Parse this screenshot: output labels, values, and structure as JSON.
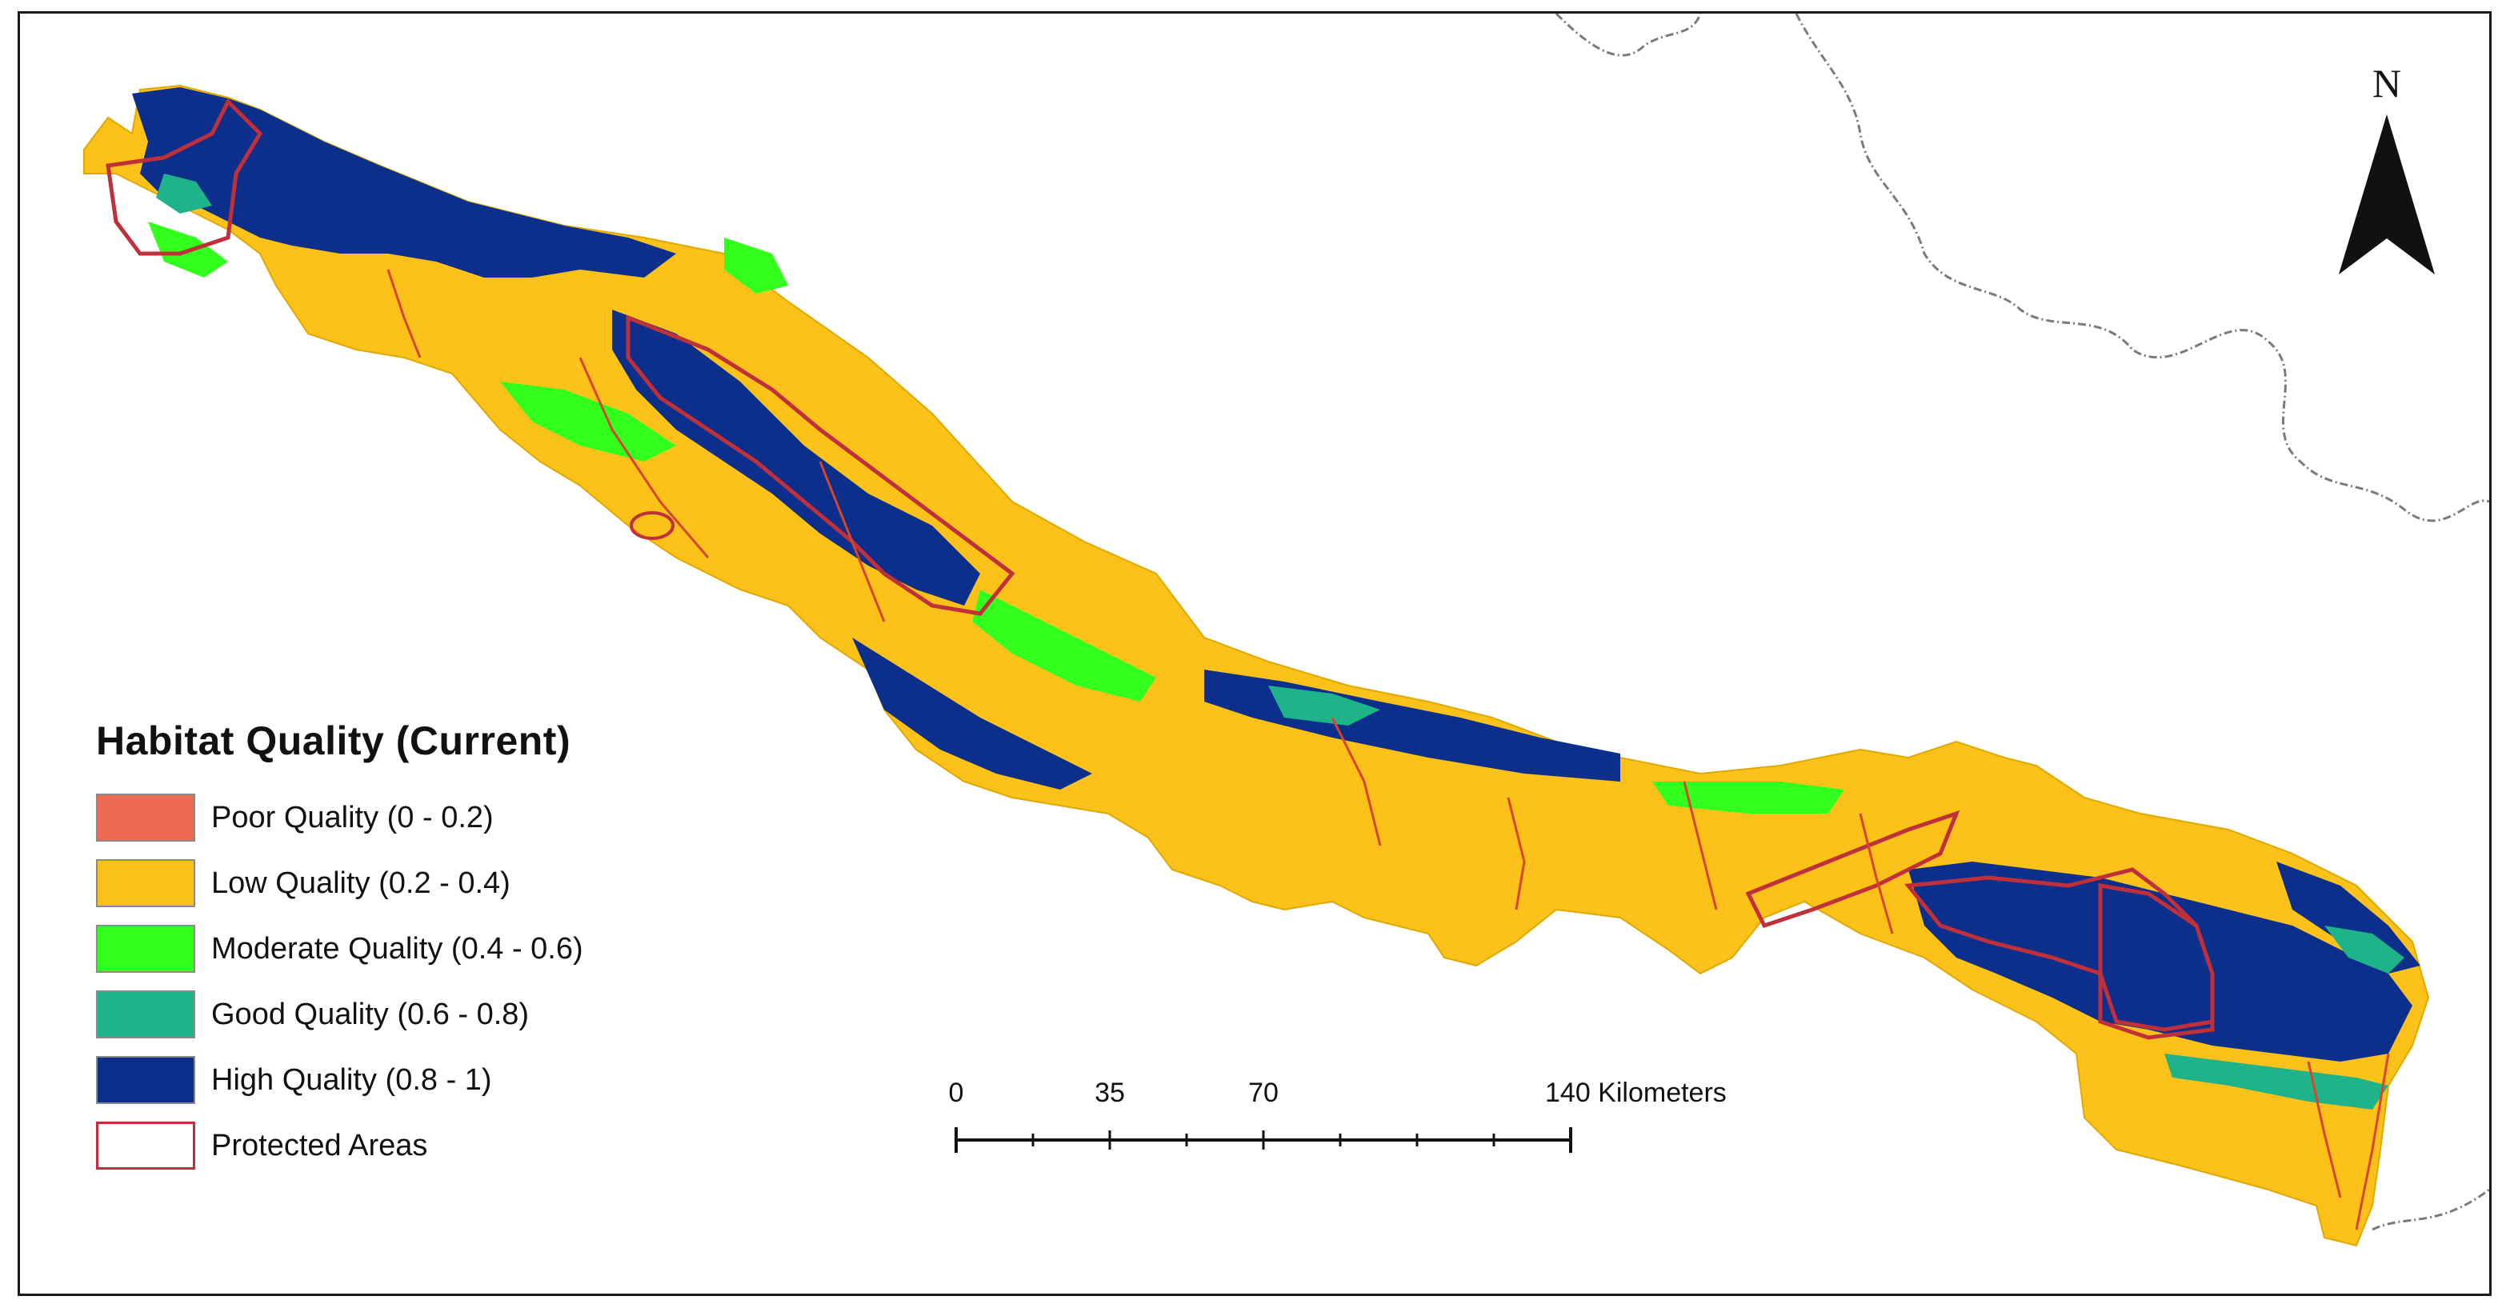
{
  "legend": {
    "title": "Habitat Quality (Current)",
    "items": [
      {
        "label": "Poor Quality (0 - 0.2)",
        "color": "#ee6a50"
      },
      {
        "label": "Low Quality (0.2 - 0.4)",
        "color": "#fcc21a"
      },
      {
        "label": "Moderate Quality (0.4 - 0.6)",
        "color": "#33ff1f"
      },
      {
        "label": "Good Quality (0.6 - 0.8)",
        "color": "#1fb38a"
      },
      {
        "label": "High Quality (0.8 - 1)",
        "color": "#0c2f8c"
      },
      {
        "label": "Protected Areas",
        "color": "#ffffff",
        "outline": "#c0303a"
      }
    ]
  },
  "north_arrow": {
    "label": "N"
  },
  "scale_bar": {
    "labels": [
      "0",
      "35",
      "70",
      "140 Kilometers"
    ],
    "values_km": [
      0,
      35,
      70,
      140
    ]
  },
  "colors": {
    "boundary_line": "#7a7a7a",
    "protected_outline": "#c0303a"
  }
}
